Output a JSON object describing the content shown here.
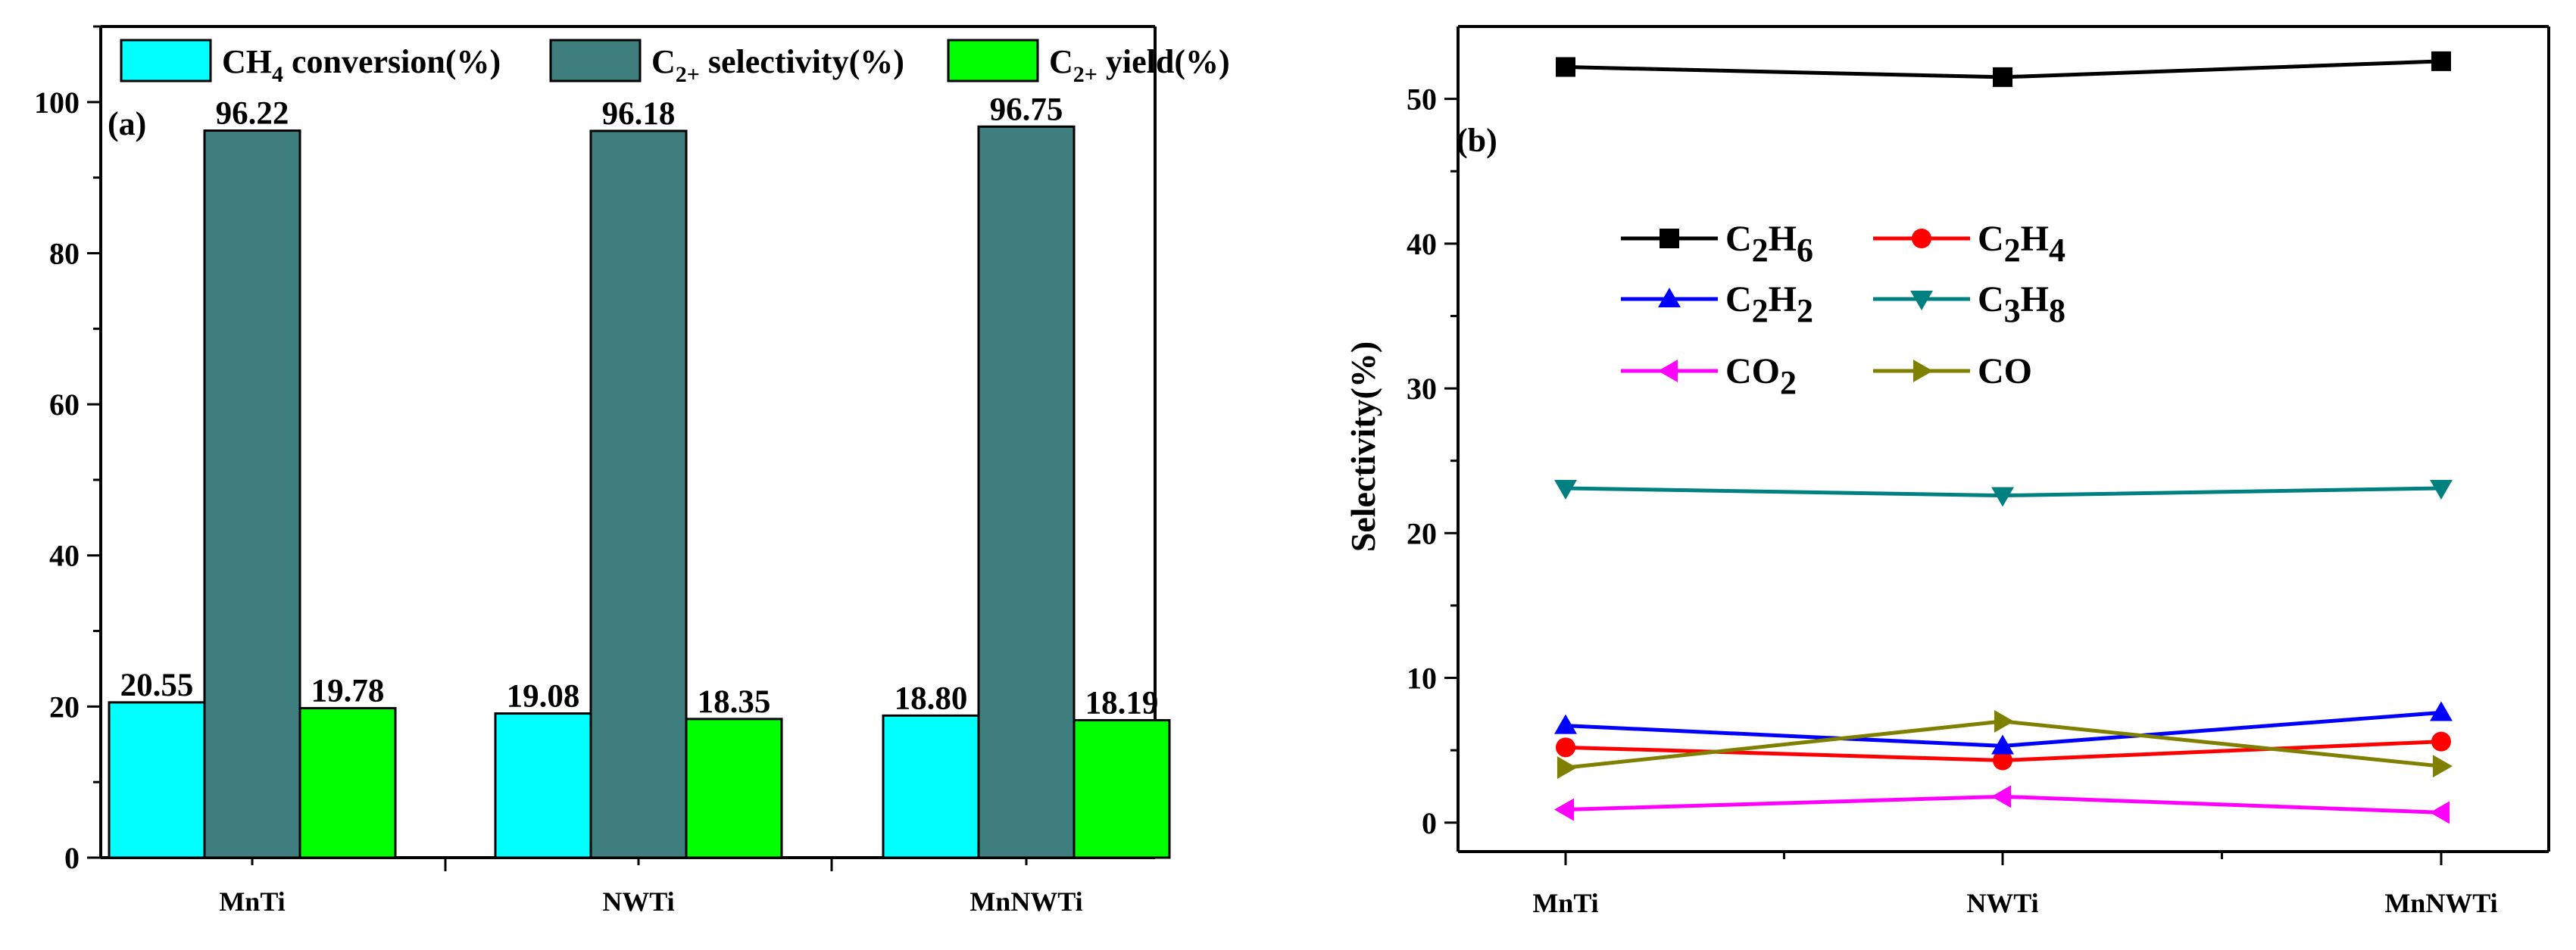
{
  "chart_data": [
    {
      "id": "a",
      "type": "bar",
      "panel_label": "(a)",
      "categories": [
        "MnTi",
        "NWTi",
        "MnNWTi"
      ],
      "series": [
        {
          "name": "CH4 conversion(%)",
          "legend": {
            "base": "CH",
            "sub": "4",
            "rest": " conversion(%)"
          },
          "color": "#00FFFF",
          "values": [
            20.55,
            19.08,
            18.8
          ],
          "labels": [
            "20.55",
            "19.08",
            "18.80"
          ]
        },
        {
          "name": "C2+ selectivity(%)",
          "legend": {
            "base": "C",
            "sub": "2+",
            "rest": " selectivity(%)"
          },
          "color": "#3F7F7F",
          "values": [
            96.22,
            96.18,
            96.75
          ],
          "labels": [
            "96.22",
            "96.18",
            "96.75"
          ]
        },
        {
          "name": "C2+ yield(%)",
          "legend": {
            "base": "C",
            "sub": "2+",
            "rest": " yield(%)"
          },
          "color": "#00FF00",
          "values": [
            19.78,
            18.35,
            18.19
          ],
          "labels": [
            "19.78",
            "18.35",
            "18.19"
          ]
        }
      ],
      "ylim": [
        0,
        110
      ],
      "yticks": [
        0,
        20,
        40,
        60,
        80,
        100
      ],
      "ytick_labels": [
        "0",
        "20",
        "40",
        "60",
        "80",
        "100"
      ],
      "ylabel": "",
      "xlabel": "",
      "legend_position": "top"
    },
    {
      "id": "b",
      "type": "line",
      "panel_label": "(b)",
      "categories": [
        "MnTi",
        "NWTi",
        "MnNWTi"
      ],
      "ylabel": "Selectivity(%)",
      "xlabel": "",
      "ylim": [
        -2,
        55
      ],
      "yticks": [
        0,
        10,
        20,
        30,
        40,
        50
      ],
      "ytick_labels": [
        "0",
        "10",
        "20",
        "30",
        "40",
        "50"
      ],
      "legend_position": "upper-left",
      "series": [
        {
          "name": "C2H6",
          "legend": [
            {
              "t": "C"
            },
            {
              "t": "2",
              "sub": true
            },
            {
              "t": "H"
            },
            {
              "t": "6",
              "sub": true
            }
          ],
          "color": "#000000",
          "marker": "square",
          "values": [
            52.2,
            51.5,
            52.6
          ]
        },
        {
          "name": "C2H4",
          "legend": [
            {
              "t": "C"
            },
            {
              "t": "2",
              "sub": true
            },
            {
              "t": "H"
            },
            {
              "t": "4",
              "sub": true
            }
          ],
          "color": "#FF0000",
          "marker": "circle",
          "values": [
            5.2,
            4.3,
            5.6
          ]
        },
        {
          "name": "C2H2",
          "legend": [
            {
              "t": "C"
            },
            {
              "t": "2",
              "sub": true
            },
            {
              "t": "H"
            },
            {
              "t": "2",
              "sub": true
            }
          ],
          "color": "#0000FF",
          "marker": "triangle-up",
          "values": [
            6.7,
            5.3,
            7.6
          ]
        },
        {
          "name": "C3H8",
          "legend": [
            {
              "t": "C"
            },
            {
              "t": "3",
              "sub": true
            },
            {
              "t": "H"
            },
            {
              "t": "8",
              "sub": true
            }
          ],
          "color": "#008080",
          "marker": "triangle-down",
          "values": [
            23.1,
            22.6,
            23.1
          ]
        },
        {
          "name": "CO2",
          "legend": [
            {
              "t": "CO"
            },
            {
              "t": "2",
              "sub": true
            }
          ],
          "color": "#FF00FF",
          "marker": "triangle-left",
          "values": [
            0.9,
            1.8,
            0.7
          ]
        },
        {
          "name": "CO",
          "legend": [
            {
              "t": "CO"
            }
          ],
          "color": "#808000",
          "marker": "triangle-right",
          "values": [
            3.8,
            7.0,
            3.9
          ]
        }
      ]
    }
  ]
}
